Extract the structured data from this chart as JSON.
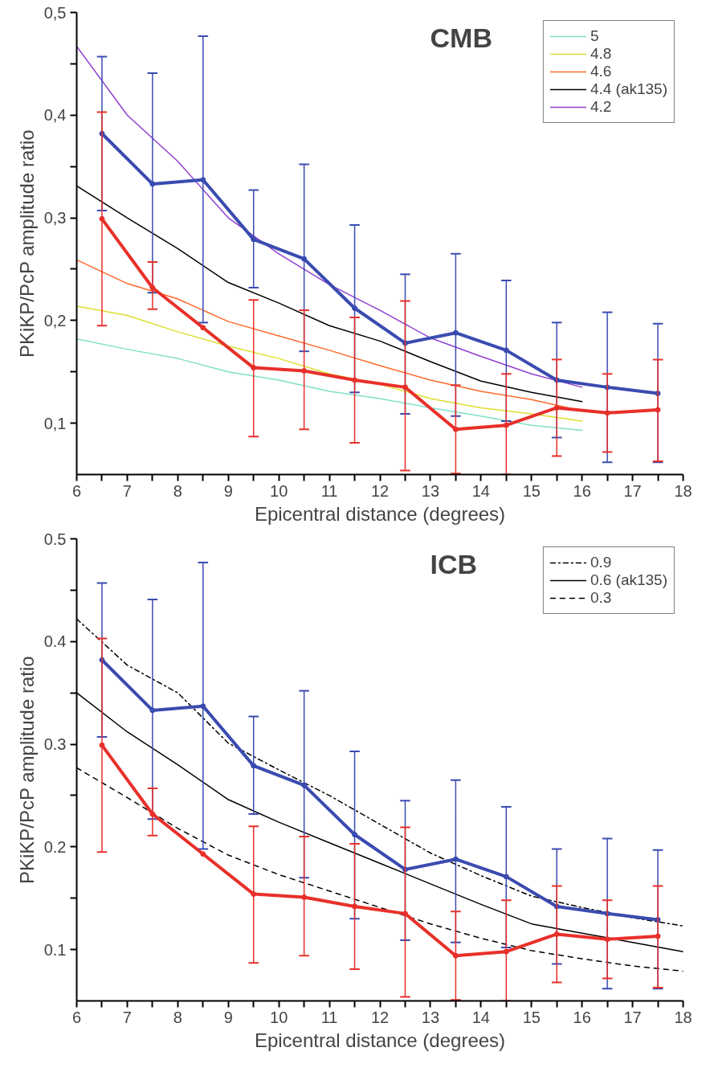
{
  "chart_data": [
    {
      "type": "line",
      "xlabel": "Epicentral distance (degrees)",
      "ylabel": "PKiKP/PcP amplitude ratio",
      "annotations": [
        "CMB"
      ],
      "legend": "top right",
      "grid": false,
      "xlim": [
        6,
        18
      ],
      "xticks": [
        6,
        {
          "value": 6.5,
          "label": null
        },
        7,
        {
          "value": 7.5,
          "label": null
        },
        8,
        {
          "value": 8.5,
          "label": null
        },
        9,
        {
          "value": 9.5,
          "label": null
        },
        10,
        {
          "value": 10.5,
          "label": null
        },
        11,
        {
          "value": 11.5,
          "label": null
        },
        12,
        {
          "value": 12.5,
          "label": null
        },
        13,
        {
          "value": 13.5,
          "label": null
        },
        14,
        {
          "value": 14.5,
          "label": null
        },
        15,
        {
          "value": 15.5,
          "label": null
        },
        16,
        {
          "value": 16.5,
          "label": null
        },
        17,
        {
          "value": 17.5,
          "label": null
        },
        18
      ],
      "ylim": [
        0.05,
        0.5
      ],
      "yticks": [
        {
          "value": 0.1,
          "label": "0,1"
        },
        {
          "value": 0.15,
          "label": null
        },
        {
          "value": 0.2,
          "label": "0,2"
        },
        {
          "value": 0.25,
          "label": null
        },
        {
          "value": 0.3,
          "label": "0,3"
        },
        {
          "value": 0.35,
          "label": null
        },
        {
          "value": 0.4,
          "label": "0,4"
        },
        {
          "value": 0.45,
          "label": null
        },
        {
          "value": 0.5,
          "label": "0,5"
        }
      ],
      "series": [
        {
          "name": "5",
          "color": "#7fe0c8",
          "line_style": "solid",
          "x": [
            6,
            7,
            8,
            9,
            10,
            11,
            12,
            13,
            14,
            15,
            16
          ],
          "values": [
            0.182,
            0.172,
            0.163,
            0.15,
            0.142,
            0.131,
            0.124,
            0.115,
            0.107,
            0.098,
            0.093
          ]
        },
        {
          "name": "4.8",
          "color": "#dede30",
          "line_style": "solid",
          "x": [
            6,
            7,
            8,
            9,
            10,
            11,
            12,
            13,
            14,
            15,
            16
          ],
          "values": [
            0.214,
            0.205,
            0.189,
            0.175,
            0.163,
            0.148,
            0.138,
            0.124,
            0.115,
            0.109,
            0.102
          ]
        },
        {
          "name": "4.6",
          "color": "#ff6a2a",
          "line_style": "solid",
          "x": [
            6,
            7,
            8,
            9,
            10,
            11,
            12,
            13,
            14,
            15,
            16
          ],
          "values": [
            0.259,
            0.236,
            0.221,
            0.199,
            0.185,
            0.171,
            0.156,
            0.142,
            0.131,
            0.123,
            0.112
          ]
        },
        {
          "name": "4.4 (ak135)",
          "color": "#000000",
          "line_style": "solid",
          "x": [
            6,
            7,
            8,
            9,
            10,
            11,
            12,
            13,
            14,
            15,
            16
          ],
          "values": [
            0.331,
            0.3,
            0.27,
            0.237,
            0.217,
            0.195,
            0.18,
            0.16,
            0.141,
            0.13,
            0.121
          ]
        },
        {
          "name": "4.2",
          "color": "#9040d0",
          "line_style": "solid",
          "x": [
            6,
            7,
            8,
            9,
            10,
            11,
            12,
            13,
            14,
            15,
            16
          ],
          "values": [
            0.467,
            0.4,
            0.355,
            0.3,
            0.265,
            0.235,
            0.21,
            0.183,
            0.165,
            0.148,
            0.135
          ]
        },
        {
          "color": "#3a4bb0",
          "marker": "circle",
          "x": [
            6.5,
            7.5,
            8.5,
            9.5,
            10.5,
            11.5,
            12.5,
            13.5,
            14.5,
            15.5,
            16.5,
            17.5
          ],
          "values": [
            0.382,
            0.333,
            0.337,
            0.279,
            0.26,
            0.212,
            0.178,
            0.188,
            0.171,
            0.142,
            0.135,
            0.129
          ],
          "errors": [
            [
              0.307,
              0.457
            ],
            [
              0.227,
              0.441
            ],
            [
              0.198,
              0.477
            ],
            [
              0.232,
              0.327
            ],
            [
              0.17,
              0.352
            ],
            [
              0.13,
              0.293
            ],
            [
              0.109,
              0.245
            ],
            [
              0.107,
              0.265
            ],
            [
              0.102,
              0.239
            ],
            [
              0.086,
              0.198
            ],
            [
              0.062,
              0.208
            ],
            [
              0.062,
              0.197
            ]
          ]
        },
        {
          "color": "#e8302a",
          "marker": "circle",
          "x": [
            6.5,
            7.5,
            8.5,
            9.5,
            10.5,
            11.5,
            12.5,
            13.5,
            14.5,
            15.5,
            16.5,
            17.5
          ],
          "values": [
            0.299,
            0.232,
            0.193,
            0.154,
            0.151,
            0.142,
            0.135,
            0.094,
            0.098,
            0.115,
            0.11,
            0.113
          ],
          "errors": [
            [
              0.195,
              0.403
            ],
            [
              0.211,
              0.257
            ],
            null,
            [
              0.087,
              0.22
            ],
            [
              0.094,
              0.21
            ],
            [
              0.081,
              0.203
            ],
            [
              0.054,
              0.219
            ],
            [
              0.051,
              0.137
            ],
            [
              0.05,
              0.148
            ],
            [
              0.068,
              0.162
            ],
            [
              0.072,
              0.148
            ],
            [
              0.063,
              0.162
            ]
          ]
        }
      ]
    },
    {
      "type": "line",
      "xlabel": "Epicentral distance (degrees)",
      "ylabel": "PKiKP/PcP amplitude ratio",
      "annotations": [
        "ICB"
      ],
      "legend": "top right",
      "grid": false,
      "xlim": [
        6,
        18
      ],
      "xticks": [
        6,
        {
          "value": 6.5,
          "label": null
        },
        7,
        {
          "value": 7.5,
          "label": null
        },
        8,
        {
          "value": 8.5,
          "label": null
        },
        9,
        {
          "value": 9.5,
          "label": null
        },
        10,
        {
          "value": 10.5,
          "label": null
        },
        11,
        {
          "value": 11.5,
          "label": null
        },
        12,
        {
          "value": 12.5,
          "label": null
        },
        13,
        {
          "value": 13.5,
          "label": null
        },
        14,
        {
          "value": 14.5,
          "label": null
        },
        15,
        {
          "value": 15.5,
          "label": null
        },
        16,
        {
          "value": 16.5,
          "label": null
        },
        17,
        {
          "value": 17.5,
          "label": null
        },
        18
      ],
      "ylim": [
        0.05,
        0.5
      ],
      "yticks": [
        0.1,
        {
          "value": 0.15,
          "label": null
        },
        0.2,
        {
          "value": 0.25,
          "label": null
        },
        0.3,
        {
          "value": 0.35,
          "label": null
        },
        0.4,
        {
          "value": 0.45,
          "label": null
        },
        0.5
      ],
      "series": [
        {
          "name": "0.9",
          "color": "#000000",
          "line_style": "dashdot",
          "x": [
            6,
            7,
            8,
            9,
            10,
            11,
            12,
            13,
            14,
            15,
            16,
            17,
            18
          ],
          "values": [
            0.422,
            0.377,
            0.35,
            0.301,
            0.275,
            0.25,
            0.222,
            0.194,
            0.172,
            0.152,
            0.141,
            0.131,
            0.123
          ]
        },
        {
          "name": "0.6 (ak135)",
          "color": "#000000",
          "line_style": "solid",
          "x": [
            6,
            7,
            8,
            9,
            10,
            11,
            12,
            13,
            14,
            15,
            16,
            17,
            18
          ],
          "values": [
            0.35,
            0.312,
            0.28,
            0.246,
            0.224,
            0.204,
            0.184,
            0.164,
            0.144,
            0.125,
            0.116,
            0.107,
            0.098
          ]
        },
        {
          "name": "0.3",
          "color": "#000000",
          "line_style": "dashed",
          "x": [
            6,
            7,
            8,
            9,
            10,
            11,
            12,
            13,
            14,
            15,
            16,
            17,
            18
          ],
          "values": [
            0.277,
            0.248,
            0.218,
            0.192,
            0.173,
            0.157,
            0.141,
            0.125,
            0.111,
            0.099,
            0.091,
            0.084,
            0.079
          ]
        },
        {
          "color": "#3a4bb0",
          "marker": "circle",
          "x": [
            6.5,
            7.5,
            8.5,
            9.5,
            10.5,
            11.5,
            12.5,
            13.5,
            14.5,
            15.5,
            16.5,
            17.5
          ],
          "values": [
            0.382,
            0.333,
            0.337,
            0.279,
            0.26,
            0.212,
            0.178,
            0.188,
            0.171,
            0.142,
            0.135,
            0.129
          ],
          "errors": [
            [
              0.307,
              0.457
            ],
            [
              0.227,
              0.441
            ],
            [
              0.198,
              0.477
            ],
            [
              0.232,
              0.327
            ],
            [
              0.17,
              0.352
            ],
            [
              0.13,
              0.293
            ],
            [
              0.109,
              0.245
            ],
            [
              0.107,
              0.265
            ],
            [
              0.102,
              0.239
            ],
            [
              0.086,
              0.198
            ],
            [
              0.062,
              0.208
            ],
            [
              0.062,
              0.197
            ]
          ]
        },
        {
          "color": "#e8302a",
          "marker": "circle",
          "x": [
            6.5,
            7.5,
            8.5,
            9.5,
            10.5,
            11.5,
            12.5,
            13.5,
            14.5,
            15.5,
            16.5,
            17.5
          ],
          "values": [
            0.299,
            0.232,
            0.193,
            0.154,
            0.151,
            0.142,
            0.135,
            0.094,
            0.098,
            0.115,
            0.11,
            0.113
          ],
          "errors": [
            [
              0.195,
              0.403
            ],
            [
              0.211,
              0.257
            ],
            null,
            [
              0.087,
              0.22
            ],
            [
              0.094,
              0.21
            ],
            [
              0.081,
              0.203
            ],
            [
              0.054,
              0.219
            ],
            [
              0.051,
              0.137
            ],
            [
              0.05,
              0.148
            ],
            [
              0.068,
              0.162
            ],
            [
              0.072,
              0.148
            ],
            [
              0.063,
              0.162
            ]
          ]
        }
      ]
    }
  ]
}
